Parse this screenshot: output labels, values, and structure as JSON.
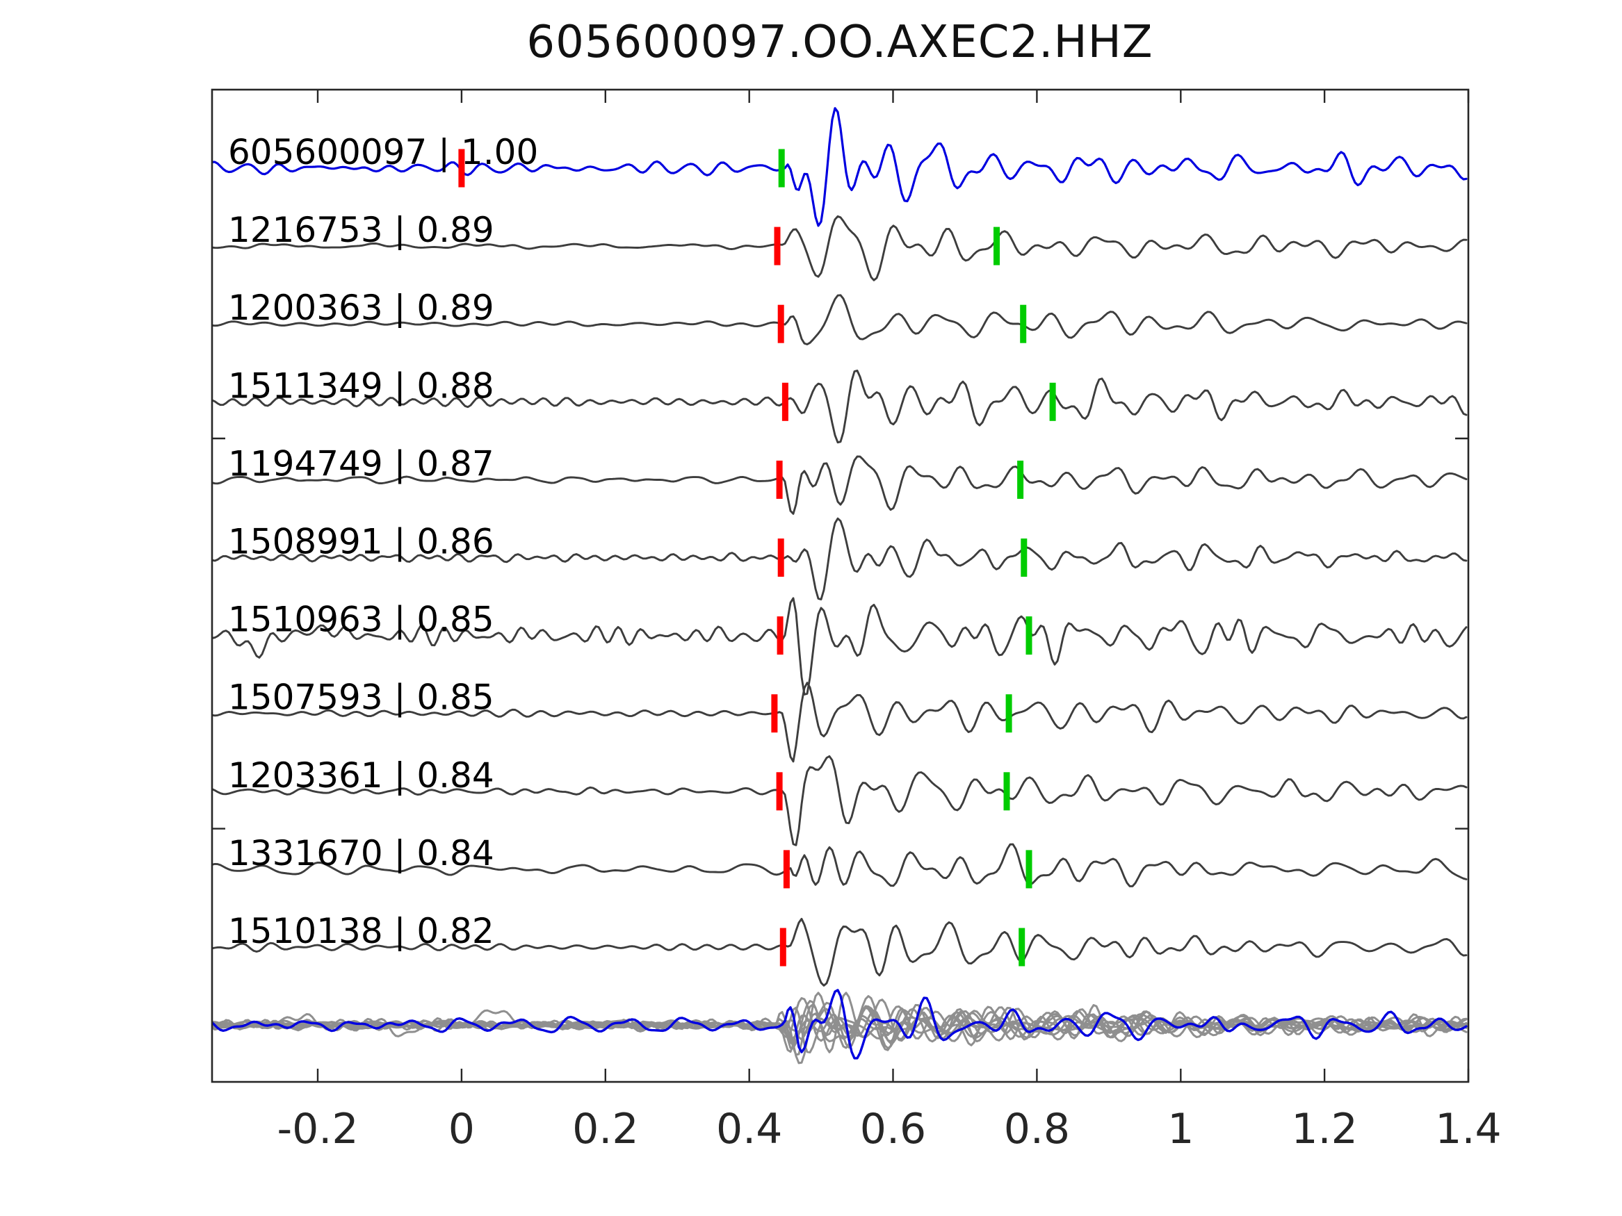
{
  "title": "605600097.OO.AXEC2.HHZ",
  "colors": {
    "template_blue": "#0000e0",
    "detection_gray": "#3d3d3d",
    "stack_member_gray": "#8f8f8f",
    "pick_red": "#ff0000",
    "pick_green": "#00cc00",
    "frame": "#262626",
    "label_text": "#000000",
    "tick_text": "#262626",
    "background": "#ffffff"
  },
  "chart_data": {
    "type": "line",
    "title": "605600097.OO.AXEC2.HHZ",
    "xlabel": "",
    "ylabel": "",
    "xlim": [
      -0.347,
      1.4
    ],
    "grid": false,
    "legend": false,
    "x_ticks": [
      {
        "value": -0.2,
        "label": "-0.2"
      },
      {
        "value": 0,
        "label": "0"
      },
      {
        "value": 0.2,
        "label": "0.2"
      },
      {
        "value": 0.4,
        "label": "0.4"
      },
      {
        "value": 0.6,
        "label": "0.6"
      },
      {
        "value": 0.8,
        "label": "0.8"
      },
      {
        "value": 1,
        "label": "1"
      },
      {
        "value": 1.2,
        "label": "1.2"
      },
      {
        "value": 1.4,
        "label": "1.4"
      }
    ],
    "side_tick_rows": [
      3.47,
      8.48
    ],
    "traces": [
      {
        "label": "605600097 | 1.00",
        "id": "605600097",
        "correlation": "1.00",
        "role": "template",
        "row": 0,
        "red_pick_t": 0.0,
        "green_pick_t": 0.445,
        "synth": {
          "seed": 11,
          "onset": 0.451,
          "amp": 66,
          "noise": 7,
          "tail": 0.5
        }
      },
      {
        "label": "1216753 | 0.89",
        "id": "1216753",
        "correlation": "0.89",
        "role": "detection",
        "row": 1,
        "red_pick_t": 0.439,
        "green_pick_t": 0.744,
        "synth": {
          "seed": 23,
          "onset": 0.447,
          "amp": 62,
          "noise": 3,
          "tail": 0.42
        }
      },
      {
        "label": "1200363 | 0.89",
        "id": "1200363",
        "correlation": "0.89",
        "role": "detection",
        "row": 2,
        "red_pick_t": 0.444,
        "green_pick_t": 0.781,
        "synth": {
          "seed": 37,
          "onset": 0.451,
          "amp": 60,
          "noise": 3,
          "tail": 0.4
        }
      },
      {
        "label": "1511349 | 0.88",
        "id": "1511349",
        "correlation": "0.88",
        "role": "detection",
        "row": 3,
        "red_pick_t": 0.45,
        "green_pick_t": 0.822,
        "synth": {
          "seed": 41,
          "onset": 0.456,
          "amp": 74,
          "noise": 5,
          "tail": 0.46
        }
      },
      {
        "label": "1194749 | 0.87",
        "id": "1194749",
        "correlation": "0.87",
        "role": "detection",
        "row": 4,
        "red_pick_t": 0.442,
        "green_pick_t": 0.777,
        "synth": {
          "seed": 59,
          "onset": 0.448,
          "amp": 63,
          "noise": 4,
          "tail": 0.42
        }
      },
      {
        "label": "1508991 | 0.86",
        "id": "1508991",
        "correlation": "0.86",
        "role": "detection",
        "row": 5,
        "red_pick_t": 0.444,
        "green_pick_t": 0.782,
        "synth": {
          "seed": 67,
          "onset": 0.45,
          "amp": 56,
          "noise": 5,
          "tail": 0.44
        }
      },
      {
        "label": "1510963 | 0.85",
        "id": "1510963",
        "correlation": "0.85",
        "role": "detection",
        "row": 6,
        "red_pick_t": 0.443,
        "green_pick_t": 0.789,
        "synth": {
          "seed": 73,
          "onset": 0.449,
          "amp": 70,
          "noise": 11,
          "tail": 0.52,
          "spikes": [
            {
              "t": -0.285,
              "a": -22
            },
            {
              "t": -0.2,
              "a": 12
            }
          ]
        }
      },
      {
        "label": "1507593 | 0.85",
        "id": "1507593",
        "correlation": "0.85",
        "role": "detection",
        "row": 7,
        "red_pick_t": 0.435,
        "green_pick_t": 0.761,
        "synth": {
          "seed": 83,
          "onset": 0.441,
          "amp": 62,
          "noise": 4,
          "tail": 0.45
        }
      },
      {
        "label": "1203361 | 0.84",
        "id": "1203361",
        "correlation": "0.84",
        "role": "detection",
        "row": 8,
        "red_pick_t": 0.442,
        "green_pick_t": 0.758,
        "synth": {
          "seed": 97,
          "onset": 0.448,
          "amp": 66,
          "noise": 4,
          "tail": 0.48
        }
      },
      {
        "label": "1331670 | 0.84",
        "id": "1331670",
        "correlation": "0.84",
        "role": "detection",
        "row": 9,
        "red_pick_t": 0.452,
        "green_pick_t": 0.789,
        "synth": {
          "seed": 103,
          "onset": 0.458,
          "amp": 56,
          "noise": 7,
          "tail": 0.42
        }
      },
      {
        "label": "1510138 | 0.82",
        "id": "1510138",
        "correlation": "0.82",
        "role": "detection",
        "row": 10,
        "red_pick_t": 0.447,
        "green_pick_t": 0.779,
        "synth": {
          "seed": 113,
          "onset": 0.453,
          "amp": 60,
          "noise": 5,
          "tail": 0.44
        }
      }
    ],
    "stack": {
      "row": 11,
      "members": 10,
      "member_synth": {
        "seed": 211,
        "onset": 0.446,
        "amp": 46,
        "noise": 4.5,
        "tail": 0.5
      },
      "template_synth": {
        "seed": 151,
        "onset": 0.449,
        "amp": 52,
        "noise": 9,
        "tail": 0.5
      },
      "member_spikes": [
        {
          "member": 2,
          "spikes": [
            {
              "t": -0.09,
              "a": -30
            },
            {
              "t": -0.1,
              "a": 22
            }
          ]
        },
        {
          "member": 5,
          "spikes": [
            {
              "t": 0.045,
              "a": 24
            },
            {
              "t": -0.23,
              "a": 14
            }
          ]
        }
      ]
    }
  }
}
